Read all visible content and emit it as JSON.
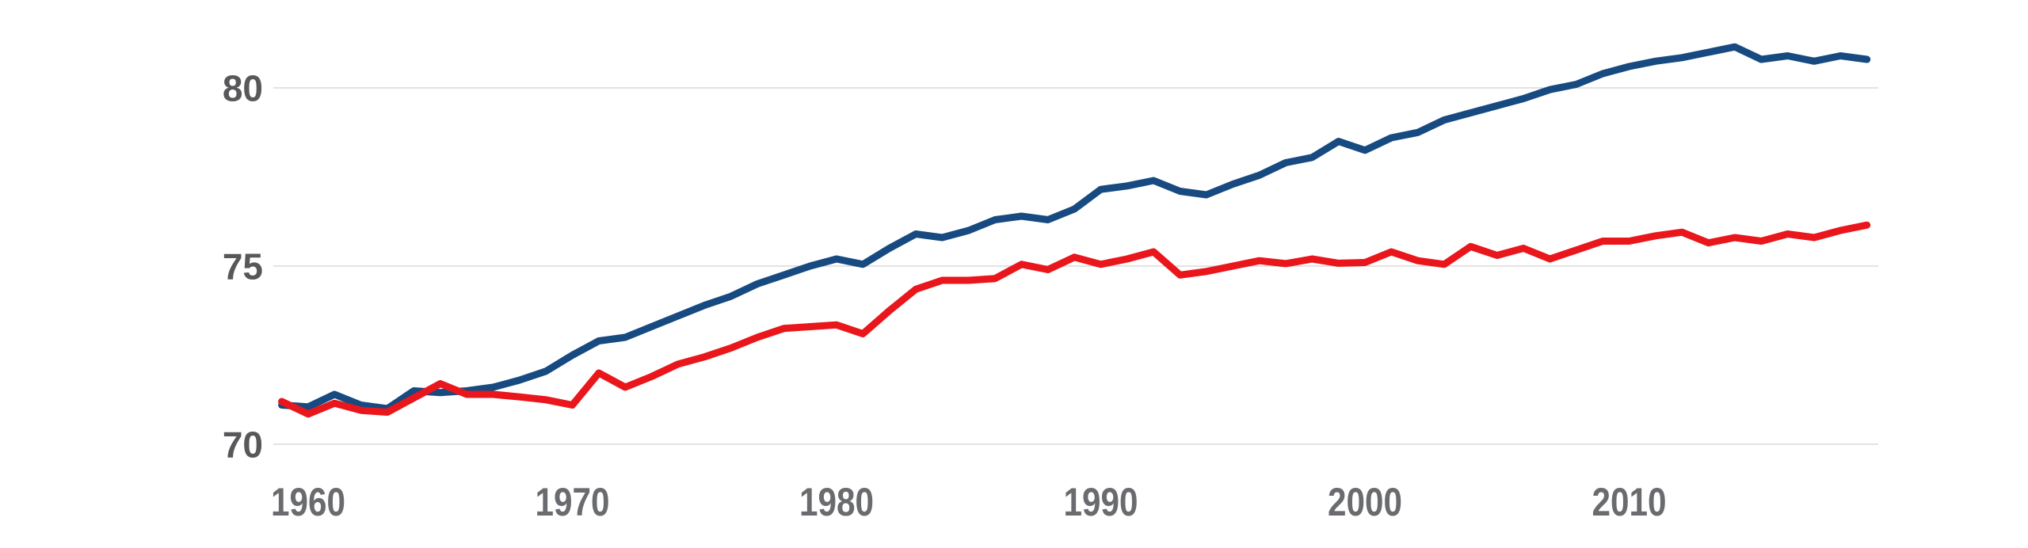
{
  "chart_data": {
    "type": "line",
    "title": "",
    "xlabel": "",
    "ylabel": "",
    "grid": true,
    "legend": false,
    "background_color": "#ffffff",
    "gridline_color": "#e3e3e3",
    "ylim": [
      67.4,
      82.1
    ],
    "xlim": [
      1958.7,
      2019.4
    ],
    "yticks": [
      70,
      75,
      80
    ],
    "ytick_labels": [
      "70",
      "75",
      "80"
    ],
    "xticks": [
      1960,
      1970,
      1980,
      1990,
      2000,
      2010
    ],
    "xtick_labels": [
      "1960",
      "1970",
      "1980",
      "1990",
      "2000",
      "2010"
    ],
    "x": [
      1959,
      1960,
      1961,
      1962,
      1963,
      1964,
      1965,
      1966,
      1967,
      1968,
      1969,
      1970,
      1971,
      1972,
      1973,
      1974,
      1975,
      1976,
      1977,
      1978,
      1979,
      1980,
      1981,
      1982,
      1983,
      1984,
      1985,
      1986,
      1987,
      1988,
      1989,
      1990,
      1991,
      1992,
      1993,
      1994,
      1995,
      1996,
      1997,
      1998,
      1999,
      2000,
      2001,
      2002,
      2003,
      2004,
      2005,
      2006,
      2007,
      2008,
      2009,
      2010,
      2011,
      2012,
      2013,
      2014,
      2015,
      2016,
      2017,
      2018,
      2019
    ],
    "series": [
      {
        "name": "blue",
        "color": "#174a80",
        "values": [
          71.1,
          71.05,
          71.4,
          71.1,
          71.0,
          71.5,
          71.45,
          71.5,
          71.6,
          71.8,
          72.05,
          72.5,
          72.9,
          73.0,
          73.3,
          73.6,
          73.9,
          74.15,
          74.5,
          74.75,
          75.0,
          75.2,
          75.05,
          75.5,
          75.9,
          75.8,
          76.0,
          76.3,
          76.4,
          76.3,
          76.6,
          77.15,
          77.25,
          77.4,
          77.1,
          77.0,
          77.3,
          77.55,
          77.9,
          78.05,
          78.5,
          78.25,
          78.6,
          78.75,
          79.1,
          79.3,
          79.5,
          79.7,
          79.95,
          80.1,
          80.4,
          80.6,
          80.75,
          80.85,
          81.0,
          81.15,
          80.8,
          80.9,
          80.75,
          80.9,
          80.8
        ]
      },
      {
        "name": "red",
        "color": "#e9161c",
        "values": [
          71.2,
          70.85,
          71.15,
          70.95,
          70.9,
          71.3,
          71.7,
          71.4,
          71.4,
          71.33,
          71.25,
          71.1,
          72.0,
          71.6,
          71.9,
          72.25,
          72.45,
          72.7,
          73.0,
          73.25,
          73.3,
          73.35,
          73.1,
          73.75,
          74.35,
          74.6,
          74.6,
          74.65,
          75.05,
          74.9,
          75.25,
          75.05,
          75.2,
          75.4,
          74.75,
          74.85,
          75.0,
          75.15,
          75.07,
          75.2,
          75.08,
          75.1,
          75.4,
          75.15,
          75.05,
          75.55,
          75.3,
          75.5,
          75.2,
          75.45,
          75.7,
          75.7,
          75.85,
          75.95,
          75.65,
          75.8,
          75.7,
          75.9,
          75.8,
          76.0,
          76.15
        ]
      }
    ]
  }
}
